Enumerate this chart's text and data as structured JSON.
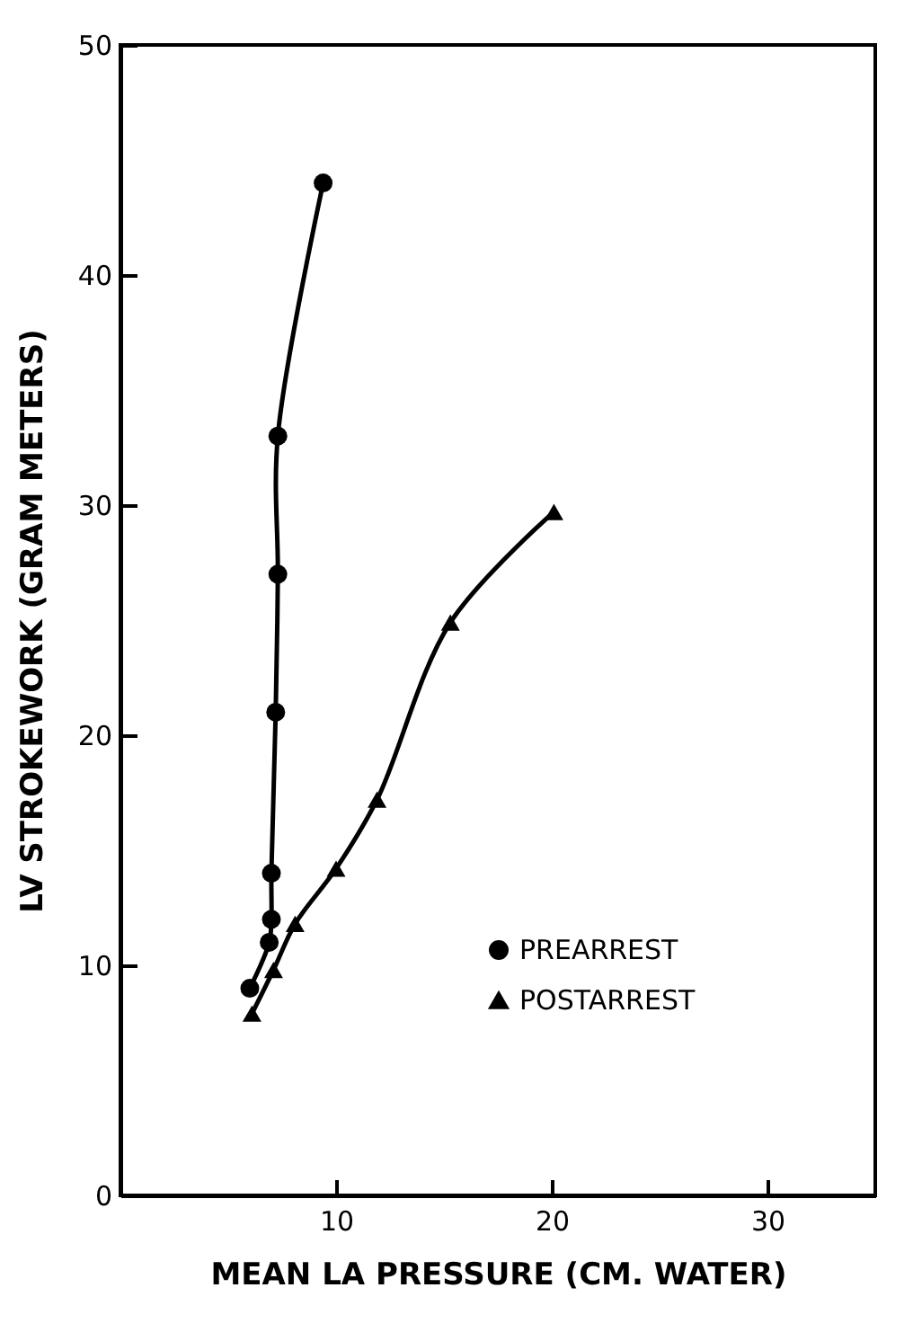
{
  "chart_data": {
    "type": "line",
    "xlabel": "MEAN LA PRESSURE (CM. WATER)",
    "ylabel": "LV STROKEWORK (GRAM METERS)",
    "xlim": [
      0,
      35
    ],
    "xticks": [
      10,
      20,
      30
    ],
    "ylim": [
      0,
      50
    ],
    "yticks": [
      0,
      10,
      20,
      30,
      40,
      50
    ],
    "grid": false,
    "legend": "bottom right",
    "line_style": "solid",
    "series": [
      {
        "name": "PREARREST",
        "color": "#000000",
        "marker": "circle",
        "x": [
          6.0,
          6.9,
          7.0,
          7.0,
          7.2,
          7.3,
          7.3,
          9.4
        ],
        "values": [
          9,
          11,
          12,
          14,
          21,
          27,
          33,
          44
        ]
      },
      {
        "name": "POSTARREST",
        "color": "#000000",
        "marker": "triangle",
        "x": [
          6.1,
          7.1,
          8.1,
          10.0,
          11.9,
          15.3,
          20.1
        ],
        "values": [
          7.9,
          9.8,
          11.8,
          14.2,
          17.2,
          24.9,
          29.7
        ]
      }
    ]
  }
}
